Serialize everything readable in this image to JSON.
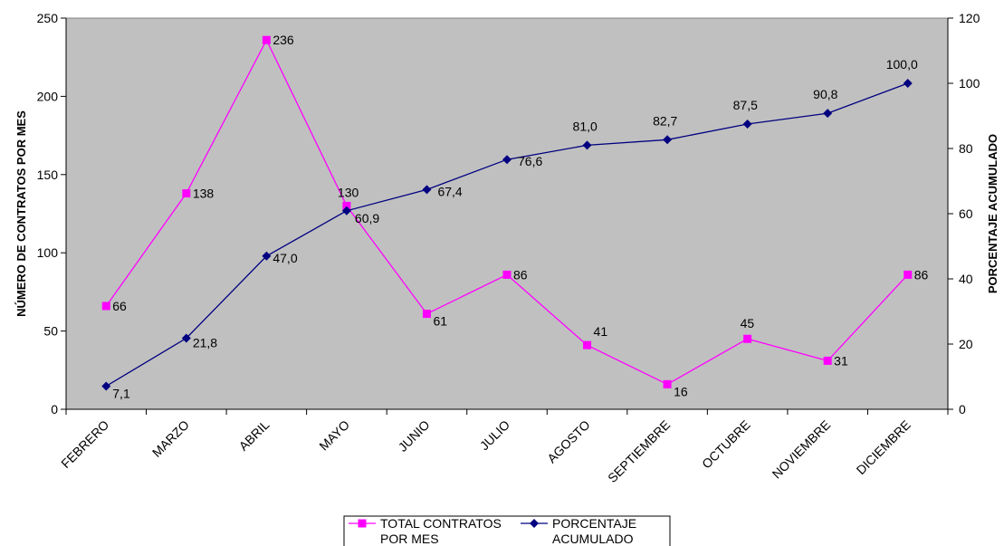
{
  "chart_data": {
    "type": "line",
    "categories": [
      "FEBRERO",
      "MARZO",
      "ABRIL",
      "MAYO",
      "JUNIO",
      "JULIO",
      "AGOSTO",
      "SEPTIEMBRE",
      "OCTUBRE",
      "NOVIEMBRE",
      "DICIEMBRE"
    ],
    "series": [
      {
        "name_lines": [
          "TOTAL CONTRATOS",
          "POR MES"
        ],
        "axis": "left",
        "color": "#ff00ff",
        "marker": "square",
        "values": [
          66,
          138,
          236,
          130,
          61,
          86,
          41,
          16,
          45,
          31,
          86
        ],
        "labels": [
          "66",
          "138",
          "236",
          "130",
          "61",
          "86",
          "41",
          "16",
          "45",
          "31",
          "86"
        ]
      },
      {
        "name_lines": [
          "PORCENTAJE",
          "ACUMULADO"
        ],
        "axis": "right",
        "color": "#000080",
        "marker": "diamond",
        "values": [
          7.1,
          21.8,
          47.0,
          60.9,
          67.4,
          76.6,
          81.0,
          82.7,
          87.5,
          90.8,
          100.0
        ],
        "labels": [
          "7,1",
          "21,8",
          "47,0",
          "60,9",
          "67,4",
          "76,6",
          "81,0",
          "82,7",
          "87,5",
          "90,8",
          "100,0"
        ]
      }
    ],
    "y_left": {
      "label": "NÚMERO DE CONTRATOS POR MES",
      "min": 0,
      "max": 250,
      "ticks": [
        0,
        50,
        100,
        150,
        200,
        250
      ]
    },
    "y_right": {
      "label": "PORCENTAJE ACUMULADO",
      "min": 0,
      "max": 120,
      "ticks": [
        0,
        20,
        40,
        60,
        80,
        100,
        120
      ]
    },
    "plot_background": "#c0c0c0",
    "grid": false,
    "legend_position": "bottom-center"
  }
}
